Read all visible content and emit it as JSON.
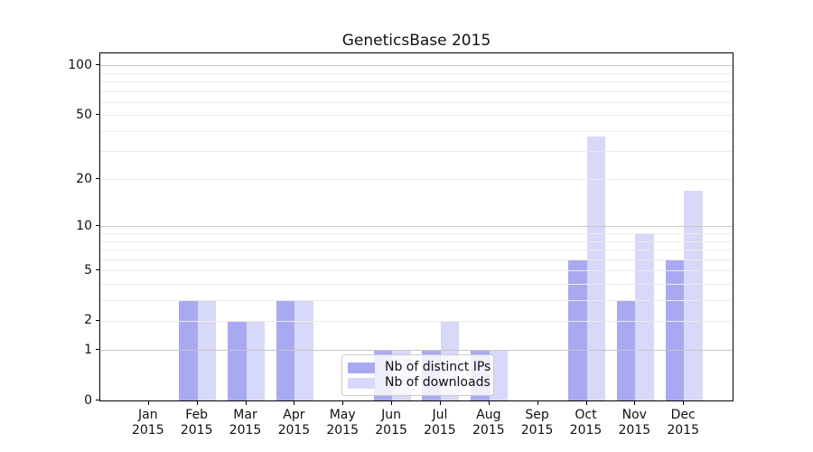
{
  "chart_data": {
    "type": "bar",
    "title": "GeneticsBase 2015",
    "year_label": "2015",
    "categories": [
      "Jan",
      "Feb",
      "Mar",
      "Apr",
      "May",
      "Jun",
      "Jul",
      "Aug",
      "Sep",
      "Oct",
      "Nov",
      "Dec"
    ],
    "series": [
      {
        "name": "Nb of distinct IPs",
        "color": "#a9a9f1",
        "values": [
          0,
          3,
          2,
          3,
          0,
          1,
          1,
          1,
          0,
          6,
          3,
          6
        ]
      },
      {
        "name": "Nb of downloads",
        "color": "#d8d8f8",
        "values": [
          0,
          3,
          2,
          3,
          0,
          1,
          2,
          1,
          0,
          37,
          9,
          17
        ]
      }
    ],
    "yscale": "log1p",
    "ylim": [
      0,
      118
    ],
    "yticks": [
      0,
      1,
      2,
      5,
      10,
      20,
      50,
      100
    ],
    "grid": {
      "major": [
        1,
        10,
        100
      ],
      "minor": [
        2,
        3,
        4,
        5,
        6,
        7,
        8,
        9,
        20,
        30,
        40,
        50,
        60,
        70,
        80,
        90
      ]
    },
    "legend_position": "lower center",
    "legend_labels": [
      "Nb of distinct IPs",
      "Nb of downloads"
    ]
  }
}
